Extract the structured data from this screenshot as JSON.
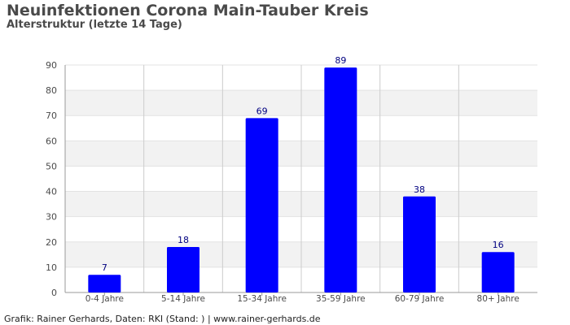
{
  "header": {
    "title": "Neuinfektionen Corona Main-Tauber Kreis",
    "subtitle": "Alterstruktur (letzte 14 Tage)"
  },
  "footer": {
    "credit": "Grafik: Rainer Gerhards, Daten: RKI (Stand: ) | www.rainer-gerhards.de"
  },
  "colors": {
    "bar": "#0000ff",
    "bar_label": "#000080",
    "band": "#f2f2f2",
    "grid": "#cccccc",
    "axis": "#999999",
    "text": "#4a4a4a"
  },
  "chart_data": {
    "type": "bar",
    "title": "Neuinfektionen Corona Main-Tauber Kreis",
    "subtitle": "Alterstruktur (letzte 14 Tage)",
    "xlabel": "",
    "ylabel": "",
    "categories": [
      "0-4 Jahre",
      "5-14 Jahre",
      "15-34 Jahre",
      "35-59 Jahre",
      "60-79 Jahre",
      "80+ Jahre"
    ],
    "values": [
      7,
      18,
      69,
      89,
      38,
      16
    ],
    "ylim": [
      0,
      90
    ],
    "yticks": [
      0,
      10,
      20,
      30,
      40,
      50,
      60,
      70,
      80,
      90
    ],
    "grid": true,
    "legend": "none"
  }
}
